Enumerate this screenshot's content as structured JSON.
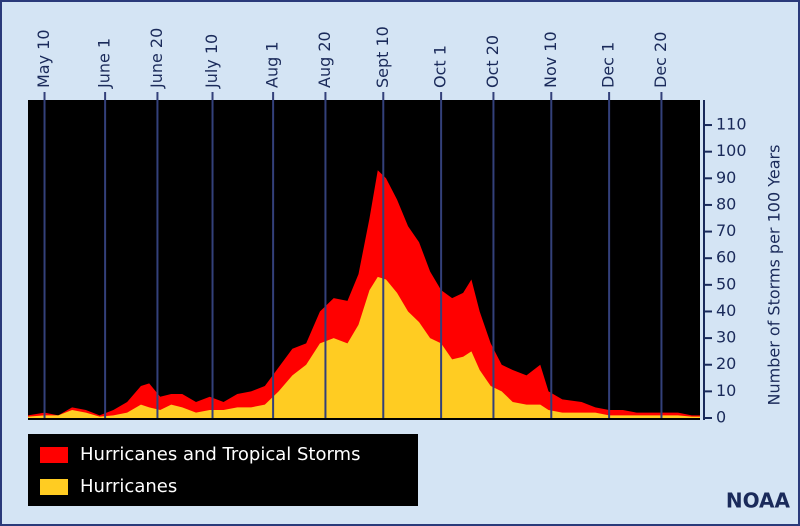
{
  "chart_data": {
    "type": "area",
    "y_label": "Number of Storms per 100 Years",
    "annotation": "NOAA",
    "x": [
      124,
      130,
      135,
      140,
      145,
      150,
      155,
      160,
      165,
      168,
      172,
      176,
      180,
      185,
      190,
      195,
      200,
      205,
      210,
      215,
      220,
      225,
      230,
      235,
      240,
      244,
      248,
      251,
      254,
      258,
      262,
      266,
      270,
      274,
      278,
      282,
      285,
      288,
      292,
      296,
      300,
      305,
      310,
      313,
      318,
      325,
      330,
      335,
      340,
      345,
      350,
      355,
      360,
      365,
      368
    ],
    "series": [
      {
        "name": "Hurricanes and Tropical Storms",
        "color": "#ff0000",
        "values": [
          1,
          2,
          1,
          4,
          3,
          1,
          3,
          6,
          12,
          13,
          8,
          9,
          9,
          6,
          8,
          6,
          9,
          10,
          12,
          19,
          26,
          28,
          40,
          45,
          44,
          54,
          75,
          93,
          90,
          82,
          72,
          66,
          55,
          48,
          45,
          47,
          52,
          40,
          28,
          20,
          18,
          16,
          20,
          10,
          7,
          6,
          4,
          3,
          3,
          2,
          2,
          2,
          2,
          1,
          1
        ]
      },
      {
        "name": "Hurricanes",
        "color": "#ffcc22",
        "values": [
          0.5,
          1,
          1,
          3,
          2,
          0.5,
          1,
          2,
          5,
          4,
          3,
          5,
          4,
          2,
          3,
          3,
          4,
          4,
          5,
          10,
          16,
          20,
          28,
          30,
          28,
          35,
          48,
          53,
          52,
          47,
          40,
          36,
          30,
          28,
          22,
          23,
          25,
          18,
          12,
          10,
          6,
          5,
          5,
          3,
          2,
          2,
          2,
          1,
          1,
          1,
          1,
          1,
          1,
          0.5,
          0.5
        ]
      }
    ],
    "xlim": [
      124,
      368
    ],
    "xticks": [
      {
        "value": 130,
        "label": "May 10"
      },
      {
        "value": 152,
        "label": "June 1"
      },
      {
        "value": 171,
        "label": "June 20"
      },
      {
        "value": 191,
        "label": "July 10"
      },
      {
        "value": 213,
        "label": "Aug 1"
      },
      {
        "value": 232,
        "label": "Aug 20"
      },
      {
        "value": 253,
        "label": "Sept 10"
      },
      {
        "value": 274,
        "label": "Oct 1"
      },
      {
        "value": 293,
        "label": "Oct 20"
      },
      {
        "value": 314,
        "label": "Nov 10"
      },
      {
        "value": 335,
        "label": "Dec 1"
      },
      {
        "value": 354,
        "label": "Dec 20"
      }
    ],
    "ylim": [
      0,
      119.4
    ],
    "yticks": [
      0,
      10,
      20,
      30,
      40,
      50,
      60,
      70,
      80,
      90,
      100,
      110
    ],
    "grid": true
  }
}
